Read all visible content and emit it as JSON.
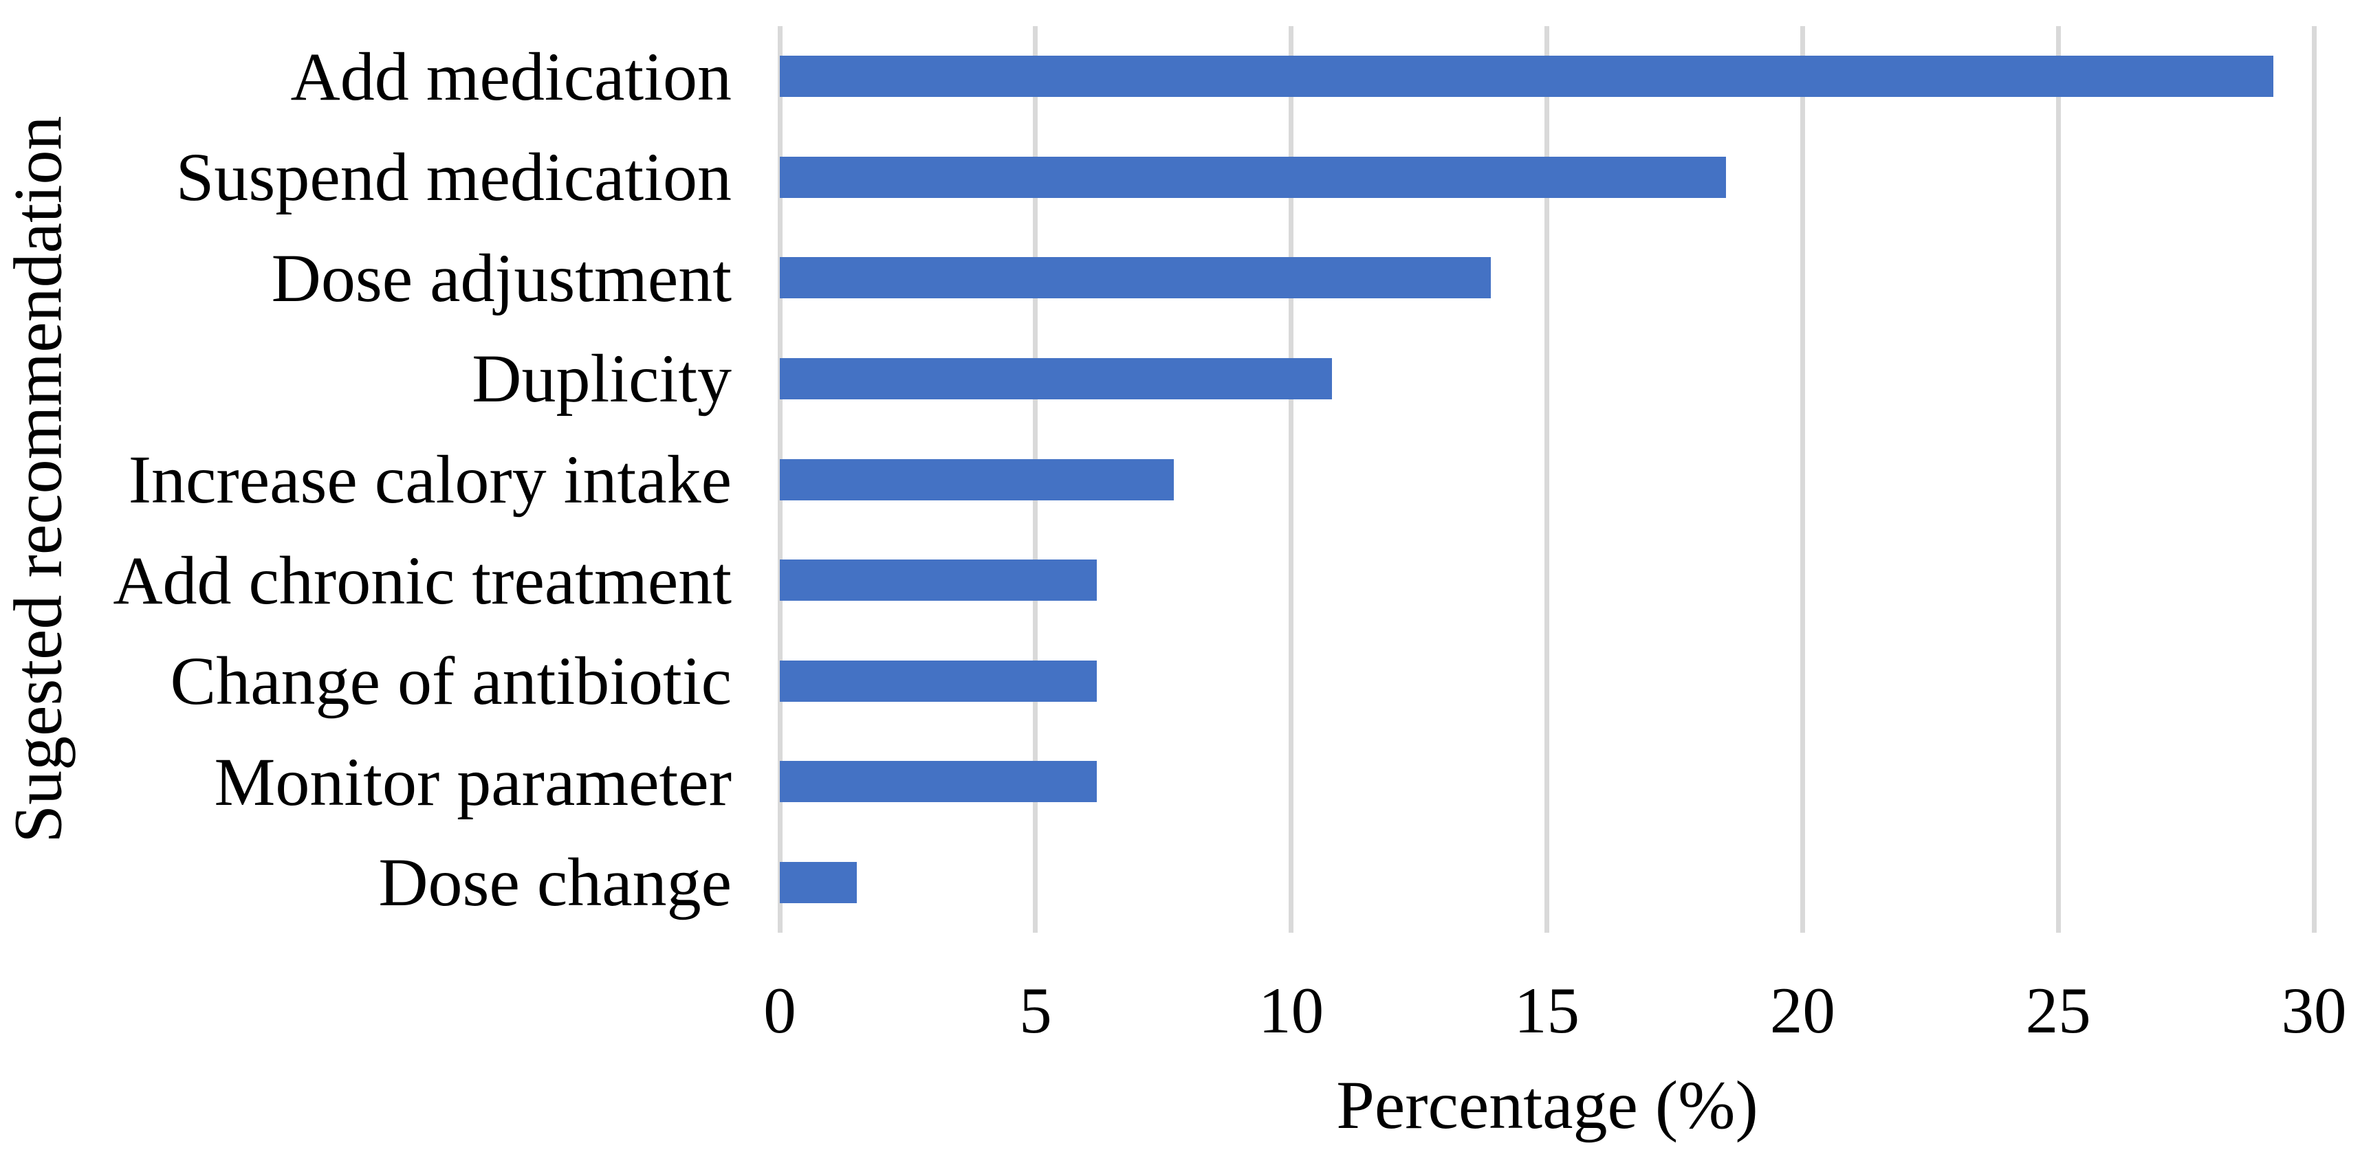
{
  "chart_data": {
    "type": "bar",
    "orientation": "horizontal",
    "title": "",
    "categories": [
      "Add medication",
      "Suspend medication",
      "Dose adjustment",
      "Duplicity",
      "Increase calory intake",
      "Add chronic treatment",
      "Change of antibiotic",
      "Monitor parameter",
      "Dose change"
    ],
    "values": [
      29.2,
      18.5,
      13.9,
      10.8,
      7.7,
      6.2,
      6.2,
      6.2,
      1.5
    ],
    "xlabel": "Percentage (%)",
    "ylabel": "Sugested recommendation",
    "xlim": [
      0,
      30
    ],
    "xticks": [
      0,
      5,
      10,
      15,
      20,
      25,
      30
    ],
    "grid": "vertical-gridlines-on",
    "legend": "none",
    "colors": {
      "bar": "#4472C4",
      "gridline": "#D9D9D9",
      "text": "#000000",
      "background": "#FFFFFF"
    }
  }
}
